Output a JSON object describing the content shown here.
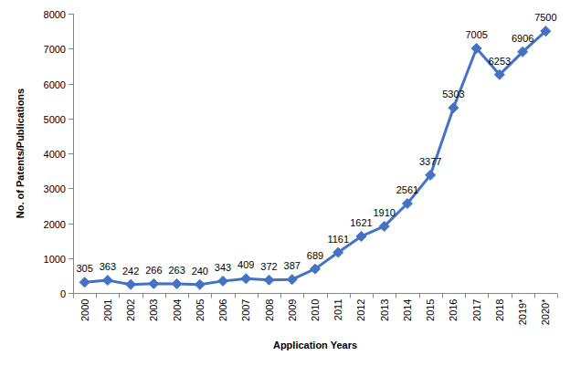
{
  "chart_data": {
    "type": "line",
    "x_label": "Application Years",
    "y_label": "No. of Patents/Publications",
    "categories": [
      "2000",
      "2001",
      "2002",
      "2003",
      "2004",
      "2005",
      "2006",
      "2007",
      "2008",
      "2009",
      "2010",
      "2011",
      "2012",
      "2013",
      "2014",
      "2015",
      "2016",
      "2017",
      "2018",
      "2019*",
      "2020*"
    ],
    "values": [
      305,
      363,
      242,
      266,
      263,
      240,
      343,
      409,
      372,
      387,
      689,
      1161,
      1621,
      1910,
      2561,
      3377,
      5303,
      7005,
      6253,
      6906,
      7500
    ],
    "color": "#4472c4",
    "marker": "diamond",
    "line_style": "solid",
    "data_labels": true,
    "grid": false,
    "ylim": [
      0,
      8000
    ],
    "yticks": [
      0,
      1000,
      2000,
      3000,
      4000,
      5000,
      6000,
      7000,
      8000
    ]
  }
}
